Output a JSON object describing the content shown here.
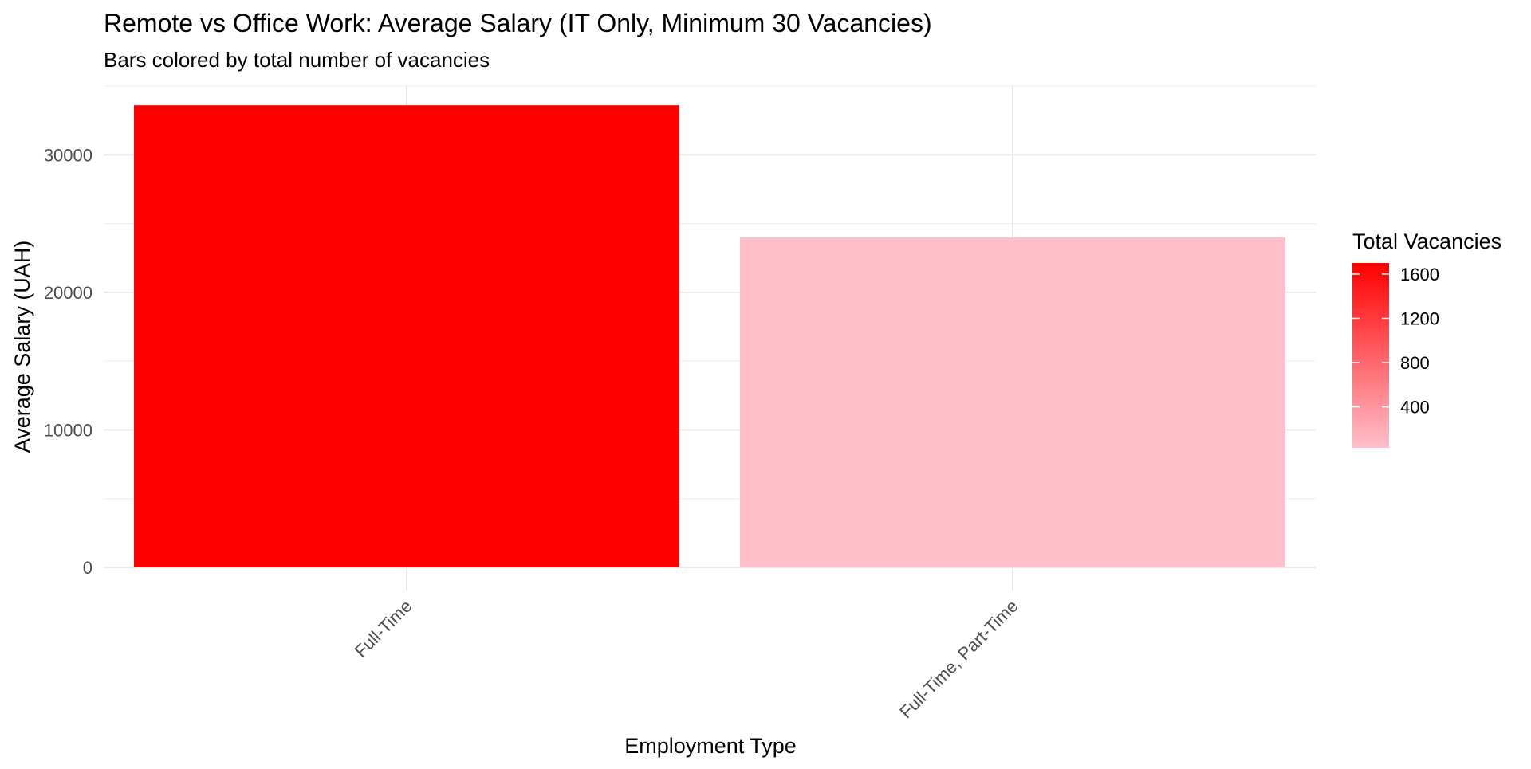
{
  "chart_data": {
    "type": "bar",
    "title": "Remote vs Office Work: Average Salary (IT Only, Minimum 30 Vacancies)",
    "subtitle": "Bars colored by total number of vacancies",
    "xlabel": "Employment Type",
    "ylabel": "Average Salary (UAH)",
    "categories": [
      "Full-Time",
      "Full-Time, Part-Time"
    ],
    "values": [
      33600,
      24000
    ],
    "vacancies": [
      1700,
      30
    ],
    "ylim": [
      0,
      35000
    ],
    "yticks": [
      0,
      10000,
      20000,
      30000
    ],
    "yticks_labels": [
      "0",
      "10000",
      "20000",
      "30000"
    ],
    "grid": true,
    "legend": {
      "title": "Total Vacancies",
      "position": "right",
      "min": 30,
      "max": 1700,
      "ticks": [
        400,
        800,
        1200,
        1600
      ],
      "tick_labels": [
        "400",
        "800",
        "1200",
        "1600"
      ],
      "low_color": "#ffc0cb",
      "high_color": "#ff0000"
    }
  }
}
